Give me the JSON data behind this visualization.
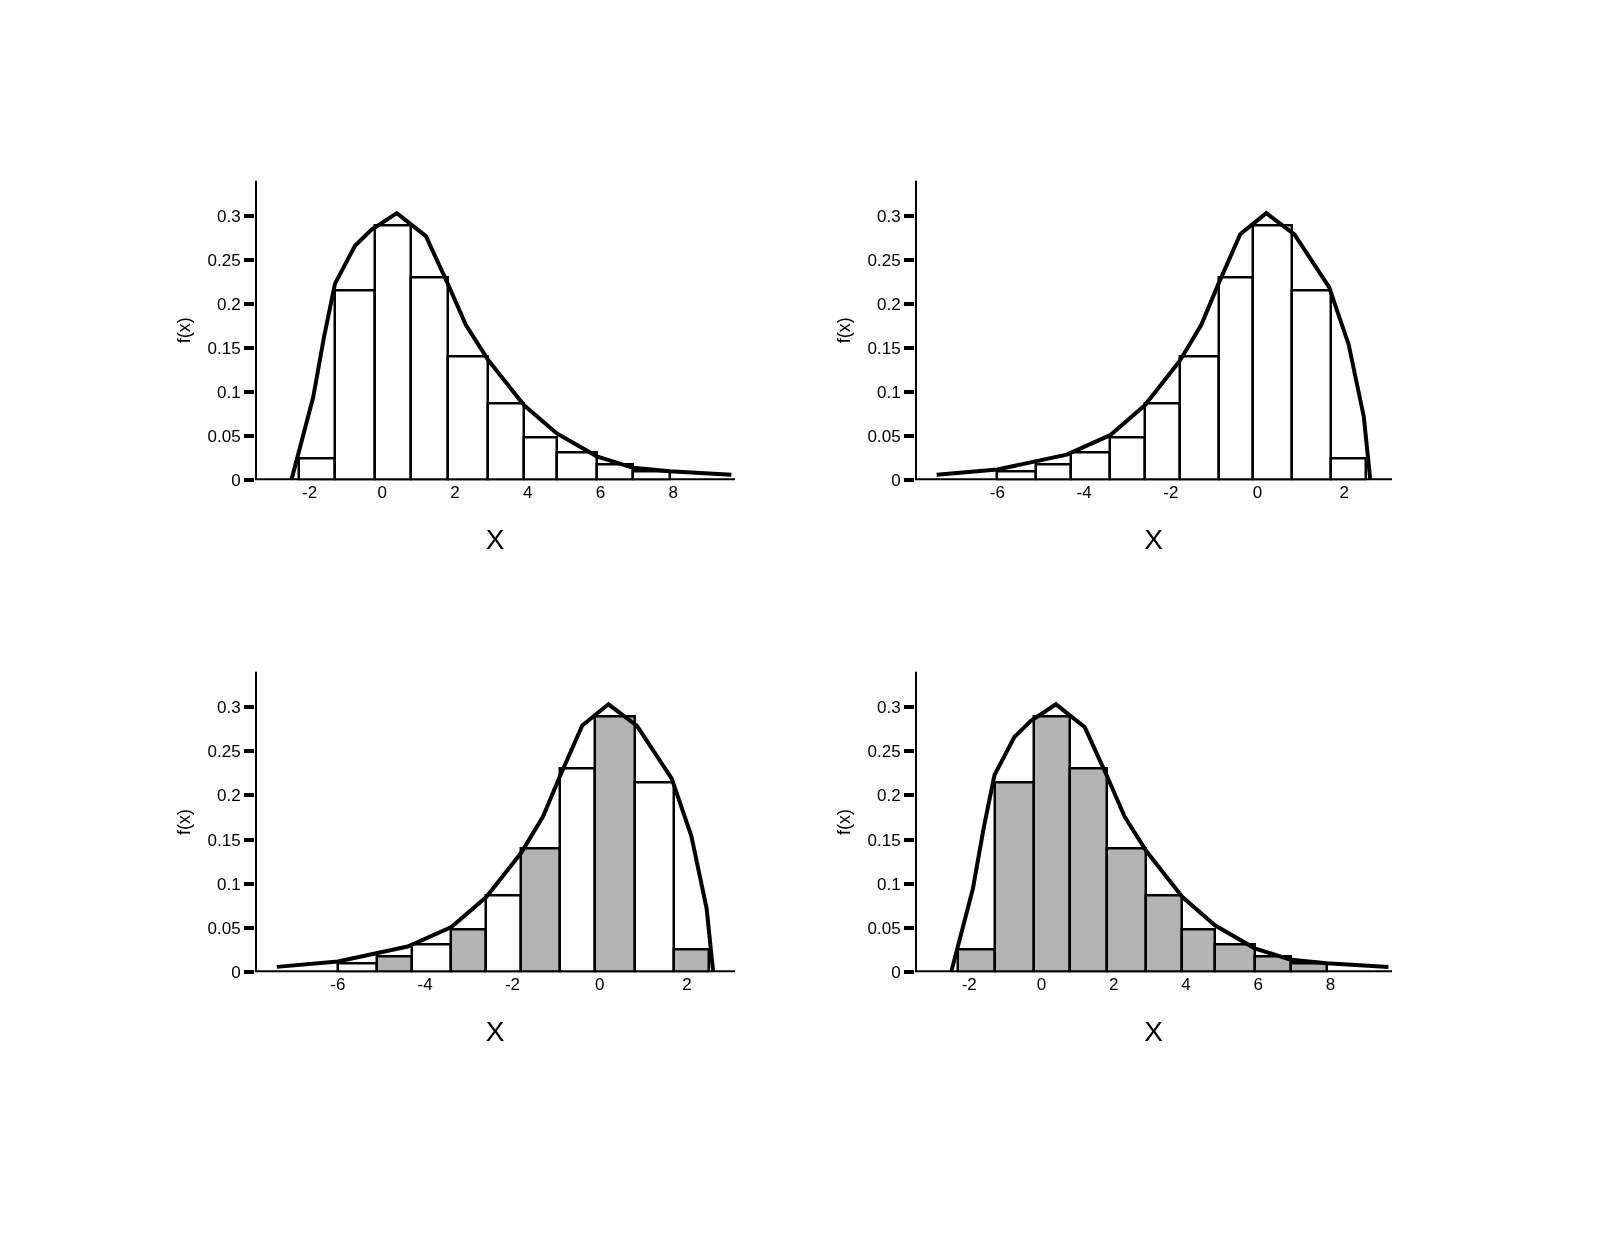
{
  "chart_data": [
    {
      "type": "histogram",
      "xlabel": "X",
      "ylabel": "f(x)",
      "bins": [
        -2.3,
        -1.3,
        -0.2,
        0.8,
        1.8,
        2.9,
        3.9,
        4.8,
        5.9,
        6.9,
        7.9
      ],
      "values": [
        0.025,
        0.215,
        0.289,
        0.23,
        0.14,
        0.087,
        0.048,
        0.031,
        0.018,
        0.01
      ],
      "colors": [
        "#ffffff",
        "#ffffff",
        "#ffffff",
        "#ffffff",
        "#ffffff",
        "#ffffff",
        "#ffffff",
        "#ffffff",
        "#ffffff",
        "#ffffff"
      ],
      "series": [
        {
          "type": "line",
          "color": "#000000",
          "x": [
            -2.5,
            -1.9,
            -1.6,
            -1.3,
            -0.75,
            -0.3,
            0.4,
            1.2,
            1.8,
            2.3,
            2.9,
            3.9,
            4.8,
            5.9,
            6.9,
            7.9,
            9.6
          ],
          "values": [
            0,
            0.094,
            0.163,
            0.223,
            0.266,
            0.284,
            0.303,
            0.277,
            0.223,
            0.176,
            0.137,
            0.085,
            0.053,
            0.027,
            0.014,
            0.01,
            0.006
          ]
        }
      ],
      "xlim": [
        -3.5,
        9.7
      ],
      "xticks": [
        -2,
        0,
        2,
        4,
        6,
        8
      ],
      "ylim": [
        0,
        0.34
      ],
      "yticks": [
        0,
        0.05,
        0.1,
        0.15,
        0.2,
        0.25,
        0.3
      ]
    },
    {
      "type": "histogram",
      "xlabel": "X",
      "ylabel": "f(x)",
      "bins": [
        -6.0,
        -5.1,
        -4.3,
        -3.4,
        -2.6,
        -1.8,
        -0.9,
        -0.1,
        0.8,
        1.7,
        2.5
      ],
      "values": [
        0.01,
        0.018,
        0.031,
        0.048,
        0.087,
        0.14,
        0.23,
        0.289,
        0.215,
        0.025
      ],
      "colors": [
        "#ffffff",
        "#ffffff",
        "#ffffff",
        "#ffffff",
        "#ffffff",
        "#ffffff",
        "#ffffff",
        "#ffffff",
        "#ffffff",
        "#ffffff"
      ],
      "series": [
        {
          "type": "line",
          "color": "#000000",
          "x": [
            -7.4,
            -6.0,
            -4.4,
            -3.4,
            -2.6,
            -1.8,
            -1.3,
            -0.9,
            -0.4,
            0.2,
            0.85,
            1.65,
            2.1,
            2.45,
            2.6
          ],
          "values": [
            0.006,
            0.012,
            0.029,
            0.051,
            0.085,
            0.135,
            0.176,
            0.223,
            0.279,
            0.303,
            0.279,
            0.219,
            0.154,
            0.072,
            0
          ]
        }
      ],
      "xlim": [
        -7.9,
        3.1
      ],
      "xticks": [
        -6,
        -4,
        -2,
        0,
        2
      ],
      "ylim": [
        0,
        0.34
      ],
      "yticks": [
        0,
        0.05,
        0.1,
        0.15,
        0.2,
        0.25,
        0.3
      ]
    },
    {
      "type": "histogram",
      "xlabel": "X",
      "ylabel": "f(x)",
      "bins": [
        -6.0,
        -5.1,
        -4.3,
        -3.4,
        -2.6,
        -1.8,
        -0.9,
        -0.1,
        0.8,
        1.7,
        2.5
      ],
      "values": [
        0.01,
        0.018,
        0.031,
        0.048,
        0.087,
        0.14,
        0.23,
        0.289,
        0.215,
        0.025
      ],
      "colors": [
        "#ffffff",
        "#b3b3b3",
        "#ffffff",
        "#b3b3b3",
        "#ffffff",
        "#b3b3b3",
        "#ffffff",
        "#b3b3b3",
        "#ffffff",
        "#b3b3b3"
      ],
      "series": [
        {
          "type": "line",
          "color": "#000000",
          "x": [
            -7.4,
            -6.0,
            -4.4,
            -3.4,
            -2.6,
            -1.8,
            -1.3,
            -0.9,
            -0.4,
            0.2,
            0.85,
            1.65,
            2.1,
            2.45,
            2.6
          ],
          "values": [
            0.006,
            0.012,
            0.029,
            0.051,
            0.085,
            0.135,
            0.176,
            0.223,
            0.279,
            0.303,
            0.279,
            0.219,
            0.154,
            0.072,
            0
          ]
        }
      ],
      "xlim": [
        -7.9,
        3.1
      ],
      "xticks": [
        -6,
        -4,
        -2,
        0,
        2
      ],
      "ylim": [
        0,
        0.34
      ],
      "yticks": [
        0,
        0.05,
        0.1,
        0.15,
        0.2,
        0.25,
        0.3
      ]
    },
    {
      "type": "histogram",
      "xlabel": "X",
      "ylabel": "f(x)",
      "bins": [
        -2.3,
        -1.3,
        -0.2,
        0.8,
        1.8,
        2.9,
        3.9,
        4.8,
        5.9,
        6.9,
        7.9
      ],
      "values": [
        0.025,
        0.215,
        0.289,
        0.23,
        0.14,
        0.087,
        0.048,
        0.031,
        0.018,
        0.01
      ],
      "colors": [
        "#b3b3b3",
        "#b3b3b3",
        "#b3b3b3",
        "#b3b3b3",
        "#b3b3b3",
        "#b3b3b3",
        "#b3b3b3",
        "#b3b3b3",
        "#b3b3b3",
        "#b3b3b3"
      ],
      "series": [
        {
          "type": "line",
          "color": "#000000",
          "x": [
            -2.5,
            -1.9,
            -1.6,
            -1.3,
            -0.75,
            -0.3,
            0.4,
            1.2,
            1.8,
            2.3,
            2.9,
            3.9,
            4.8,
            5.9,
            6.9,
            7.9,
            9.6
          ],
          "values": [
            0,
            0.094,
            0.163,
            0.223,
            0.266,
            0.284,
            0.303,
            0.277,
            0.223,
            0.176,
            0.137,
            0.085,
            0.053,
            0.027,
            0.014,
            0.01,
            0.006
          ]
        }
      ],
      "xlim": [
        -3.5,
        9.7
      ],
      "xticks": [
        -2,
        0,
        2,
        4,
        6,
        8
      ],
      "ylim": [
        0,
        0.34
      ],
      "yticks": [
        0,
        0.05,
        0.1,
        0.15,
        0.2,
        0.25,
        0.3
      ]
    }
  ]
}
